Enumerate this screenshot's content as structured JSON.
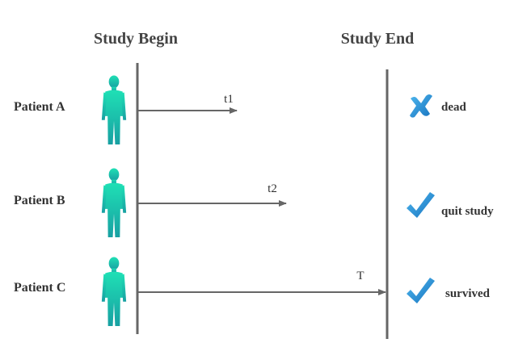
{
  "headers": {
    "begin": "Study Begin",
    "end": "Study End"
  },
  "patients": [
    {
      "name": "Patient A",
      "time_label": "t1",
      "outcome": "dead",
      "outcome_icon": "cross-icon"
    },
    {
      "name": "Patient B",
      "time_label": "t2",
      "outcome": "quit study",
      "outcome_icon": "check-icon"
    },
    {
      "name": "Patient C",
      "time_label": "T",
      "outcome": "survived",
      "outcome_icon": "check-icon"
    }
  ],
  "colors": {
    "figure_top": "#1fe0b5",
    "figure_bottom": "#18a0a2",
    "mark_light": "#4fb7ee",
    "mark_dark": "#1773bf",
    "line": "#666666"
  }
}
